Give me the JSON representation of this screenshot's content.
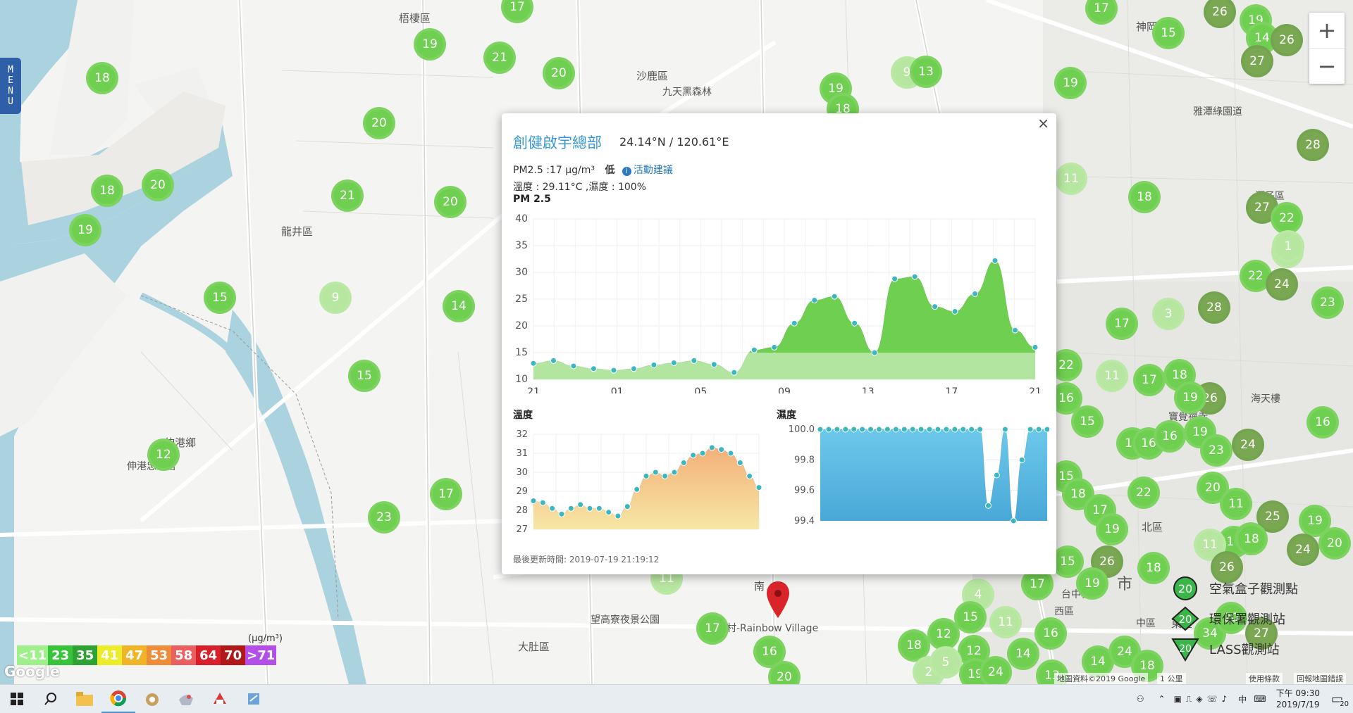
{
  "menu": {
    "label": "MENU"
  },
  "zoom": {
    "in": "+",
    "out": "−"
  },
  "map_labels": [
    {
      "text": "梧棲區"
    },
    {
      "text": "沙鹿區"
    },
    {
      "text": "九天黑森林"
    },
    {
      "text": "龍井區"
    },
    {
      "text": "伸港鄉"
    },
    {
      "text": "伸港忠孝宮"
    },
    {
      "text": "大肚區"
    },
    {
      "text": "望高寮夜景公園"
    },
    {
      "text": "神岡區"
    },
    {
      "text": "潭子區"
    },
    {
      "text": "北區"
    },
    {
      "text": "東區"
    },
    {
      "text": "西區"
    },
    {
      "text": "中區"
    },
    {
      "text": "市"
    },
    {
      "text": "雅潭綠園道"
    },
    {
      "text": "海天樓"
    },
    {
      "text": "寶覺禪寺"
    },
    {
      "text": "台中教"
    },
    {
      "text": "南"
    },
    {
      "text": "彩虹村-Rainbow Village"
    }
  ],
  "markers": [
    {
      "v": "17"
    },
    {
      "v": "19"
    },
    {
      "v": "21"
    },
    {
      "v": "20"
    },
    {
      "v": "18"
    },
    {
      "v": "20"
    },
    {
      "v": "18"
    },
    {
      "v": "20"
    },
    {
      "v": "19"
    },
    {
      "v": "21"
    },
    {
      "v": "20"
    },
    {
      "v": "15"
    },
    {
      "v": "9"
    },
    {
      "v": "14"
    },
    {
      "v": "15"
    },
    {
      "v": "12"
    },
    {
      "v": "23"
    },
    {
      "v": "17"
    },
    {
      "v": "9"
    },
    {
      "v": "19"
    },
    {
      "v": "18"
    },
    {
      "v": "17"
    },
    {
      "v": "26"
    },
    {
      "v": "15"
    },
    {
      "v": "19"
    },
    {
      "v": "14"
    },
    {
      "v": "26"
    },
    {
      "v": "27"
    },
    {
      "v": "19"
    },
    {
      "v": "11"
    },
    {
      "v": "18"
    },
    {
      "v": "28"
    },
    {
      "v": "27"
    },
    {
      "v": "22"
    },
    {
      "v": "1"
    },
    {
      "v": "22"
    },
    {
      "v": "24"
    },
    {
      "v": "23"
    },
    {
      "v": "3"
    },
    {
      "v": "28"
    },
    {
      "v": "17"
    },
    {
      "v": "22"
    },
    {
      "v": "11"
    },
    {
      "v": "16"
    },
    {
      "v": "17"
    },
    {
      "v": "18"
    },
    {
      "v": "26"
    },
    {
      "v": "19"
    },
    {
      "v": "15"
    },
    {
      "v": "15"
    },
    {
      "v": "16"
    },
    {
      "v": "16"
    },
    {
      "v": "19"
    },
    {
      "v": "23"
    },
    {
      "v": "24"
    },
    {
      "v": "16"
    },
    {
      "v": "15"
    },
    {
      "v": "18"
    },
    {
      "v": "22"
    },
    {
      "v": "17"
    },
    {
      "v": "19"
    },
    {
      "v": "20"
    },
    {
      "v": "11"
    },
    {
      "v": "17"
    },
    {
      "v": "18"
    },
    {
      "v": "25"
    },
    {
      "v": "19"
    },
    {
      "v": "24"
    },
    {
      "v": "20"
    },
    {
      "v": "18"
    },
    {
      "v": "11"
    },
    {
      "v": "15"
    },
    {
      "v": "26"
    },
    {
      "v": "19"
    },
    {
      "v": "18"
    },
    {
      "v": "26"
    },
    {
      "v": "34"
    },
    {
      "v": "27"
    },
    {
      "v": "20"
    },
    {
      "v": "4"
    },
    {
      "v": "15"
    },
    {
      "v": "11"
    },
    {
      "v": "16"
    },
    {
      "v": "18"
    },
    {
      "v": "12"
    },
    {
      "v": "12"
    },
    {
      "v": "14"
    },
    {
      "v": "17"
    },
    {
      "v": "14"
    },
    {
      "v": "24"
    },
    {
      "v": "2"
    },
    {
      "v": "5"
    },
    {
      "v": "19"
    },
    {
      "v": "24"
    },
    {
      "v": "13"
    },
    {
      "v": "17"
    },
    {
      "v": "16"
    },
    {
      "v": "20"
    },
    {
      "v": "11"
    },
    {
      "v": "18"
    },
    {
      "v": "1"
    },
    {
      "v": "9"
    },
    {
      "v": "13"
    }
  ],
  "popup": {
    "close": "×",
    "station_name": "創健啟宇總部",
    "coords": "24.14°N / 120.61°E",
    "pm_reading": "PM2.5 :17 μg/m³",
    "pm_level": "低",
    "advice_link": "活動建議",
    "info_icon": "i",
    "temp_hum": "溫度 : 29.11°C ,濕度 : 100%",
    "updated": "最後更新時間: 2019-07-19 21:19:12"
  },
  "chart_data": [
    {
      "type": "area",
      "title": "PM 2.5",
      "x_tick_labels": [
        "21",
        "01",
        "05",
        "09",
        "13",
        "17",
        "21"
      ],
      "ylim": [
        10,
        40
      ],
      "y_ticks": [
        10,
        15,
        20,
        25,
        30,
        35,
        40
      ],
      "values": [
        13,
        13.5,
        12.5,
        12,
        11.7,
        12,
        12.7,
        13.1,
        13.5,
        12.8,
        11.3,
        15.5,
        16,
        20.5,
        24.8,
        25.5,
        20.5,
        15,
        28.8,
        29.2,
        23.6,
        22.7,
        26,
        32.2,
        19.2,
        16
      ],
      "grid": true,
      "colors": {
        "below": "#b2e6a0",
        "above": "#6fcf50",
        "point": "#3bb7c0"
      }
    },
    {
      "type": "area",
      "title": "溫度",
      "ylim": [
        27,
        32
      ],
      "y_ticks": [
        27,
        28,
        29,
        30,
        31,
        32
      ],
      "values": [
        28.5,
        28.4,
        28.1,
        27.8,
        28.1,
        28.3,
        28.1,
        28.1,
        27.9,
        27.7,
        28.2,
        29.1,
        29.8,
        30,
        29.8,
        30,
        30.5,
        30.9,
        31,
        31.3,
        31.2,
        31,
        30.5,
        29.8,
        29.2
      ],
      "grid": true,
      "colors": {
        "top": "#f2b07a",
        "bottom": "#f7e7a5",
        "point": "#3bb7c0"
      }
    },
    {
      "type": "area",
      "title": "濕度",
      "ylim": [
        99.4,
        100
      ],
      "y_ticks": [
        "99.4",
        "99.6",
        "99.8",
        "100.0"
      ],
      "values": [
        100,
        100,
        100,
        100,
        100,
        100,
        100,
        100,
        100,
        100,
        100,
        100,
        100,
        100,
        100,
        100,
        100,
        100,
        100,
        100,
        99.5,
        99.7,
        100,
        99.4,
        99.8,
        100,
        100,
        100
      ],
      "grid": true,
      "colors": {
        "top": "#6cc8ea",
        "bottom": "#4aa8d8",
        "point": "#3bb7c0"
      }
    }
  ],
  "legend": {
    "unit": "(μg/m³)",
    "cells": [
      {
        "label": "<11",
        "color": "#9ef08b"
      },
      {
        "label": "23",
        "color": "#38c43a"
      },
      {
        "label": "35",
        "color": "#2ea334"
      },
      {
        "label": "41",
        "color": "#ecec2a"
      },
      {
        "label": "47",
        "color": "#f0b428"
      },
      {
        "label": "53",
        "color": "#ee8c3a"
      },
      {
        "label": "58",
        "color": "#ea6060"
      },
      {
        "label": "64",
        "color": "#d8202a"
      },
      {
        "label": "70",
        "color": "#b21818"
      },
      {
        "label": ">71",
        "color": "#b44ee8"
      }
    ]
  },
  "google": "Google",
  "map_footer": {
    "data": "地圖資料©2019 Google",
    "scale": "1 公里",
    "terms": "使用條款",
    "report": "回報地圖錯誤"
  },
  "station_legend": [
    {
      "label": "空氣盒子觀測點",
      "icon": "airbox-icon",
      "value": "20"
    },
    {
      "label": "環保署觀測站",
      "icon": "epa-icon",
      "value": "20"
    },
    {
      "label": "LASS觀測站",
      "icon": "lass-icon",
      "value": "20"
    }
  ],
  "taskbar": {
    "time": "下午 09:30",
    "date": "2019/7/19",
    "ime": "中",
    "notif": "20"
  }
}
